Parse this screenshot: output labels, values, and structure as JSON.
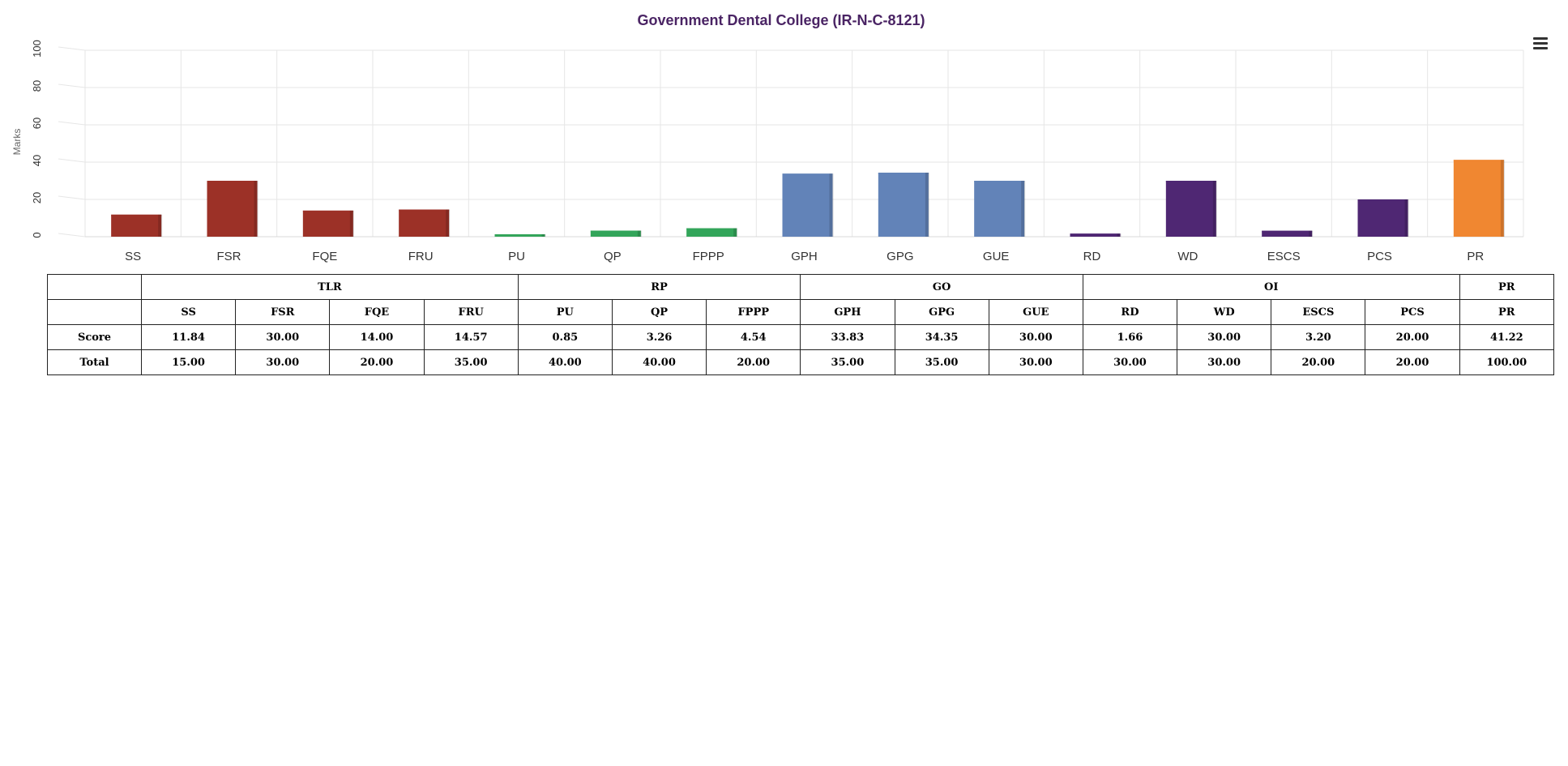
{
  "chart_data": {
    "type": "bar",
    "title": "Government Dental College (IR-N-C-8121)",
    "ylabel": "Marks",
    "xlabel": "",
    "ylim": [
      0,
      100
    ],
    "yticks": [
      0,
      20,
      40,
      60,
      80,
      100
    ],
    "grid": true,
    "categories": [
      "SS",
      "FSR",
      "FQE",
      "FRU",
      "PU",
      "QP",
      "FPPP",
      "GPH",
      "GPG",
      "GUE",
      "RD",
      "WD",
      "ESCS",
      "PCS",
      "PR"
    ],
    "values": [
      11.84,
      30.0,
      14.0,
      14.57,
      0.85,
      3.26,
      4.54,
      33.83,
      34.35,
      30.0,
      1.66,
      30.0,
      3.2,
      20.0,
      41.22
    ],
    "colors": [
      "#9c3127",
      "#9c3127",
      "#9c3127",
      "#9c3127",
      "#33a55a",
      "#33a55a",
      "#33a55a",
      "#6283b8",
      "#6283b8",
      "#6283b8",
      "#4f2773",
      "#4f2773",
      "#4f2773",
      "#4f2773",
      "#f08731"
    ]
  },
  "colors": {
    "title": "#4a2464",
    "TLR": "#9c3127",
    "RP": "#33a55a",
    "GO": "#6283b8",
    "OI": "#4f2773",
    "PR": "#f08731"
  },
  "menu_icon": "hamburger-menu-icon",
  "table": {
    "groups": [
      {
        "label": "TLR",
        "span": 4
      },
      {
        "label": "RP",
        "span": 3
      },
      {
        "label": "GO",
        "span": 3
      },
      {
        "label": "OI",
        "span": 4
      },
      {
        "label": "PR",
        "span": 1
      }
    ],
    "headers": [
      "SS",
      "FSR",
      "FQE",
      "FRU",
      "PU",
      "QP",
      "FPPP",
      "GPH",
      "GPG",
      "GUE",
      "RD",
      "WD",
      "ESCS",
      "PCS",
      "PR"
    ],
    "rows": [
      {
        "label": "Score",
        "values": [
          "11.84",
          "30.00",
          "14.00",
          "14.57",
          "0.85",
          "3.26",
          "4.54",
          "33.83",
          "34.35",
          "30.00",
          "1.66",
          "30.00",
          "3.20",
          "20.00",
          "41.22"
        ]
      },
      {
        "label": "Total",
        "values": [
          "15.00",
          "30.00",
          "20.00",
          "35.00",
          "40.00",
          "40.00",
          "20.00",
          "35.00",
          "35.00",
          "30.00",
          "30.00",
          "30.00",
          "20.00",
          "20.00",
          "100.00"
        ]
      }
    ]
  }
}
